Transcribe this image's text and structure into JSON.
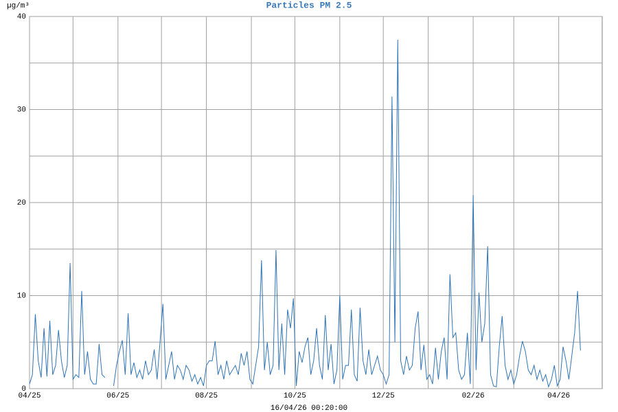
{
  "chart_data": {
    "type": "line",
    "title": "Particles PM 2.5",
    "y_unit": "µg/m³",
    "x_label": "16/04/26 00:20:00",
    "x": [
      0,
      2,
      4,
      6,
      8,
      10,
      12,
      14,
      16,
      18,
      20,
      22,
      24,
      26,
      28,
      30,
      32,
      34,
      36,
      38,
      40,
      42,
      44,
      46,
      48,
      50,
      52,
      54,
      56,
      58,
      60,
      62,
      64,
      66,
      68,
      70,
      72,
      74,
      76,
      78,
      80,
      82,
      84,
      86,
      88,
      90,
      92,
      94,
      96,
      98,
      100,
      102,
      104,
      106,
      108,
      110,
      112,
      114,
      116,
      118,
      120,
      122,
      124,
      126,
      128,
      130,
      132,
      134,
      136,
      138,
      140,
      142,
      144,
      146,
      148,
      150,
      152,
      154,
      156,
      158,
      160,
      162,
      164,
      166,
      168,
      170,
      172,
      174,
      176,
      178,
      180,
      182,
      184,
      186,
      188,
      190,
      192,
      194,
      196,
      198,
      200,
      202,
      204,
      206,
      208,
      210,
      212,
      214,
      216,
      218,
      220,
      222,
      224,
      226,
      228,
      230,
      232,
      234,
      236,
      238,
      240,
      242,
      244,
      246,
      248,
      250,
      252,
      254,
      256,
      258,
      260,
      262,
      264,
      266,
      268,
      270,
      272,
      274,
      276,
      278,
      280,
      282,
      284,
      286,
      288,
      290,
      292,
      294,
      296,
      298,
      300,
      302,
      304,
      306,
      308,
      310,
      312,
      314,
      316,
      318,
      320,
      322,
      324,
      326,
      328,
      330,
      332,
      334,
      336,
      338,
      340,
      342,
      344,
      346,
      348,
      350,
      352,
      354,
      356,
      358,
      360,
      362,
      364,
      366,
      368,
      370,
      372,
      374,
      376,
      378,
      380
    ],
    "series": [
      {
        "name": "PM 2.5",
        "color": "#2f74b5",
        "values": [
          0.5,
          1.5,
          8.0,
          3.0,
          1.2,
          6.5,
          1.3,
          7.3,
          1.5,
          2.5,
          6.3,
          3.0,
          1.2,
          2.5,
          13.5,
          1.0,
          1.5,
          1.2,
          10.5,
          1.5,
          4.0,
          1.0,
          0.5,
          0.5,
          4.8,
          1.5,
          1.2,
          null,
          null,
          0.3,
          2.5,
          4.0,
          5.2,
          1.5,
          8.1,
          1.5,
          2.8,
          1.2,
          2.0,
          1.0,
          3.0,
          1.5,
          2.0,
          4.2,
          1.0,
          5.0,
          9.1,
          1.0,
          2.5,
          4.0,
          1.0,
          2.5,
          2.0,
          1.0,
          2.5,
          2.0,
          0.8,
          1.5,
          0.5,
          1.2,
          0.3,
          2.5,
          3.0,
          3.0,
          5.1,
          1.5,
          2.5,
          1.0,
          3.0,
          1.5,
          2.0,
          2.5,
          1.5,
          3.8,
          2.5,
          4.0,
          1.0,
          0.5,
          2.5,
          4.5,
          13.8,
          2.0,
          5.0,
          1.5,
          2.5,
          14.9,
          2.0,
          7.0,
          1.5,
          8.5,
          6.5,
          9.7,
          0.3,
          4.0,
          2.8,
          4.5,
          5.5,
          1.5,
          3.0,
          6.5,
          2.5,
          1.0,
          7.9,
          2.0,
          4.8,
          0.5,
          2.0,
          10.0,
          1.0,
          2.5,
          2.5,
          8.5,
          1.5,
          0.8,
          8.7,
          3.0,
          1.5,
          4.2,
          1.5,
          2.5,
          3.5,
          2.0,
          1.5,
          0.5,
          1.5,
          31.4,
          5.0,
          37.5,
          3.0,
          1.5,
          3.5,
          2.0,
          2.5,
          6.5,
          8.3,
          2.0,
          4.7,
          1.0,
          1.5,
          0.5,
          4.4,
          1.0,
          4.0,
          5.5,
          1.0,
          12.3,
          5.5,
          6.0,
          2.0,
          1.0,
          1.5,
          6.0,
          0.5,
          20.8,
          2.0,
          10.3,
          5.0,
          7.0,
          15.3,
          1.5,
          0.3,
          0.2,
          4.5,
          7.8,
          2.5,
          1.0,
          2.0,
          0.5,
          1.5,
          3.5,
          5.1,
          4.0,
          2.0,
          1.5,
          2.5,
          1.0,
          2.0,
          0.8,
          1.5,
          0.2,
          1.0,
          2.5,
          0.3,
          1.0,
          4.5,
          3.0,
          1.0,
          3.5,
          6.0,
          10.5,
          4.1
        ]
      }
    ],
    "xlim": [
      0,
      395
    ],
    "xticks": [
      {
        "value": 0,
        "label": "04/25"
      },
      {
        "value": 61,
        "label": "06/25"
      },
      {
        "value": 122,
        "label": "08/25"
      },
      {
        "value": 183,
        "label": "10/25"
      },
      {
        "value": 244,
        "label": "12/25"
      },
      {
        "value": 306,
        "label": "02/26"
      },
      {
        "value": 365,
        "label": "04/26"
      }
    ],
    "xminor": [
      30,
      91,
      153,
      214,
      275,
      334
    ],
    "ylim": [
      0,
      40
    ],
    "yticks": [
      0,
      10,
      20,
      30,
      40
    ],
    "yminor": [
      5,
      15,
      25,
      35
    ],
    "grid": true
  }
}
